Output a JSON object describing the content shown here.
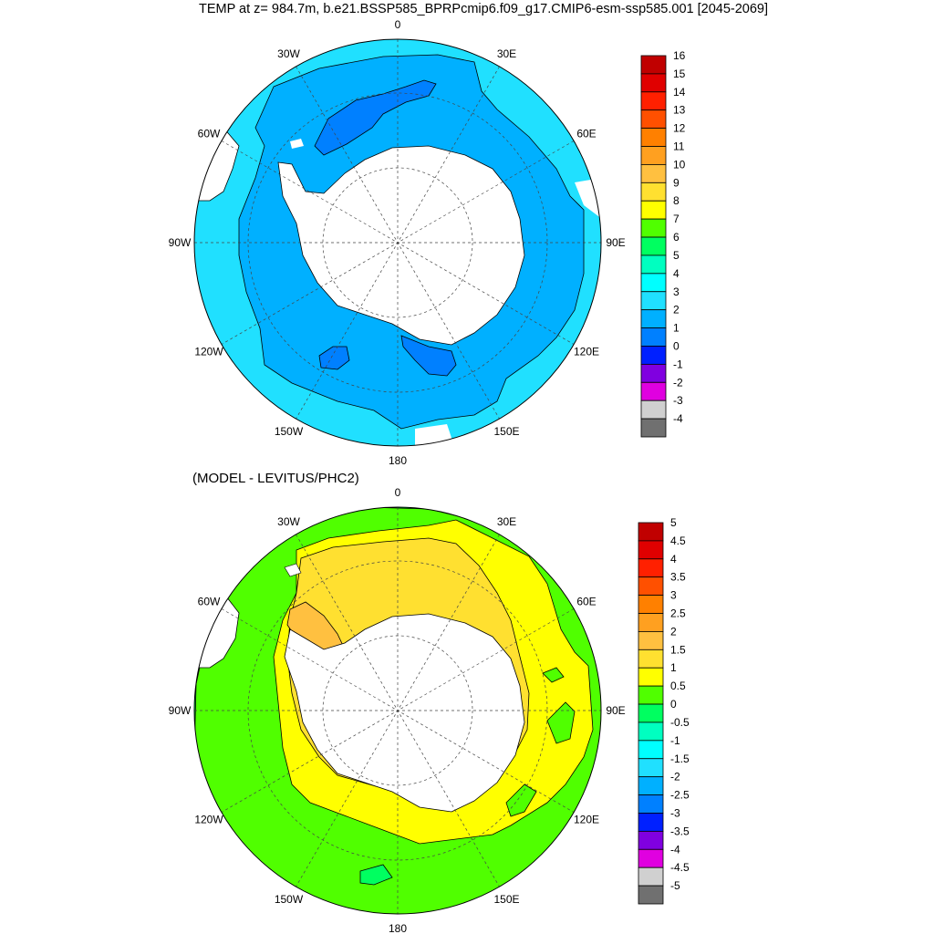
{
  "title": "TEMP at z= 984.7m, b.e21.BSSP585_BPRPcmip6.f09_g17.CMIP6-esm-ssp585.001 [2045-2069]",
  "subtitle": "(MODEL - LEVITUS/PHC2)",
  "lon_labels": [
    "0",
    "30E",
    "60E",
    "90E",
    "120E",
    "150E",
    "180",
    "150W",
    "120W",
    "90W",
    "60W",
    "30W"
  ],
  "colors": {
    "land": "#ffffff",
    "coast": "#000000",
    "grid": "#444444"
  },
  "top_colorbar": {
    "labels": [
      "16",
      "15",
      "14",
      "13",
      "12",
      "11",
      "10",
      "9",
      "8",
      "7",
      "6",
      "5",
      "4",
      "3",
      "2",
      "1",
      "0",
      "-1",
      "-2",
      "-3",
      "-4"
    ],
    "colors": [
      "#c00000",
      "#e00000",
      "#ff2000",
      "#ff5000",
      "#ff8000",
      "#ffa020",
      "#ffc040",
      "#ffe030",
      "#ffff00",
      "#50ff00",
      "#00ff60",
      "#00ffc0",
      "#00ffff",
      "#20e0ff",
      "#00b0ff",
      "#0080ff",
      "#0020ff",
      "#8000e0",
      "#e000e0",
      "#d0d0d0",
      "#707070"
    ]
  },
  "bottom_colorbar": {
    "labels": [
      "5",
      "4.5",
      "4",
      "3.5",
      "3",
      "2.5",
      "2",
      "1.5",
      "1",
      "0.5",
      "0",
      "-0.5",
      "-1",
      "-1.5",
      "-2",
      "-2.5",
      "-3",
      "-3.5",
      "-4",
      "-4.5",
      "-5"
    ],
    "colors": [
      "#c00000",
      "#e00000",
      "#ff2000",
      "#ff5000",
      "#ff8000",
      "#ffa020",
      "#ffc040",
      "#ffe030",
      "#ffff00",
      "#50ff00",
      "#00ff60",
      "#00ffc0",
      "#00ffff",
      "#20e0ff",
      "#00b0ff",
      "#0080ff",
      "#0020ff",
      "#8000e0",
      "#e000e0",
      "#d0d0d0",
      "#707070"
    ]
  }
}
